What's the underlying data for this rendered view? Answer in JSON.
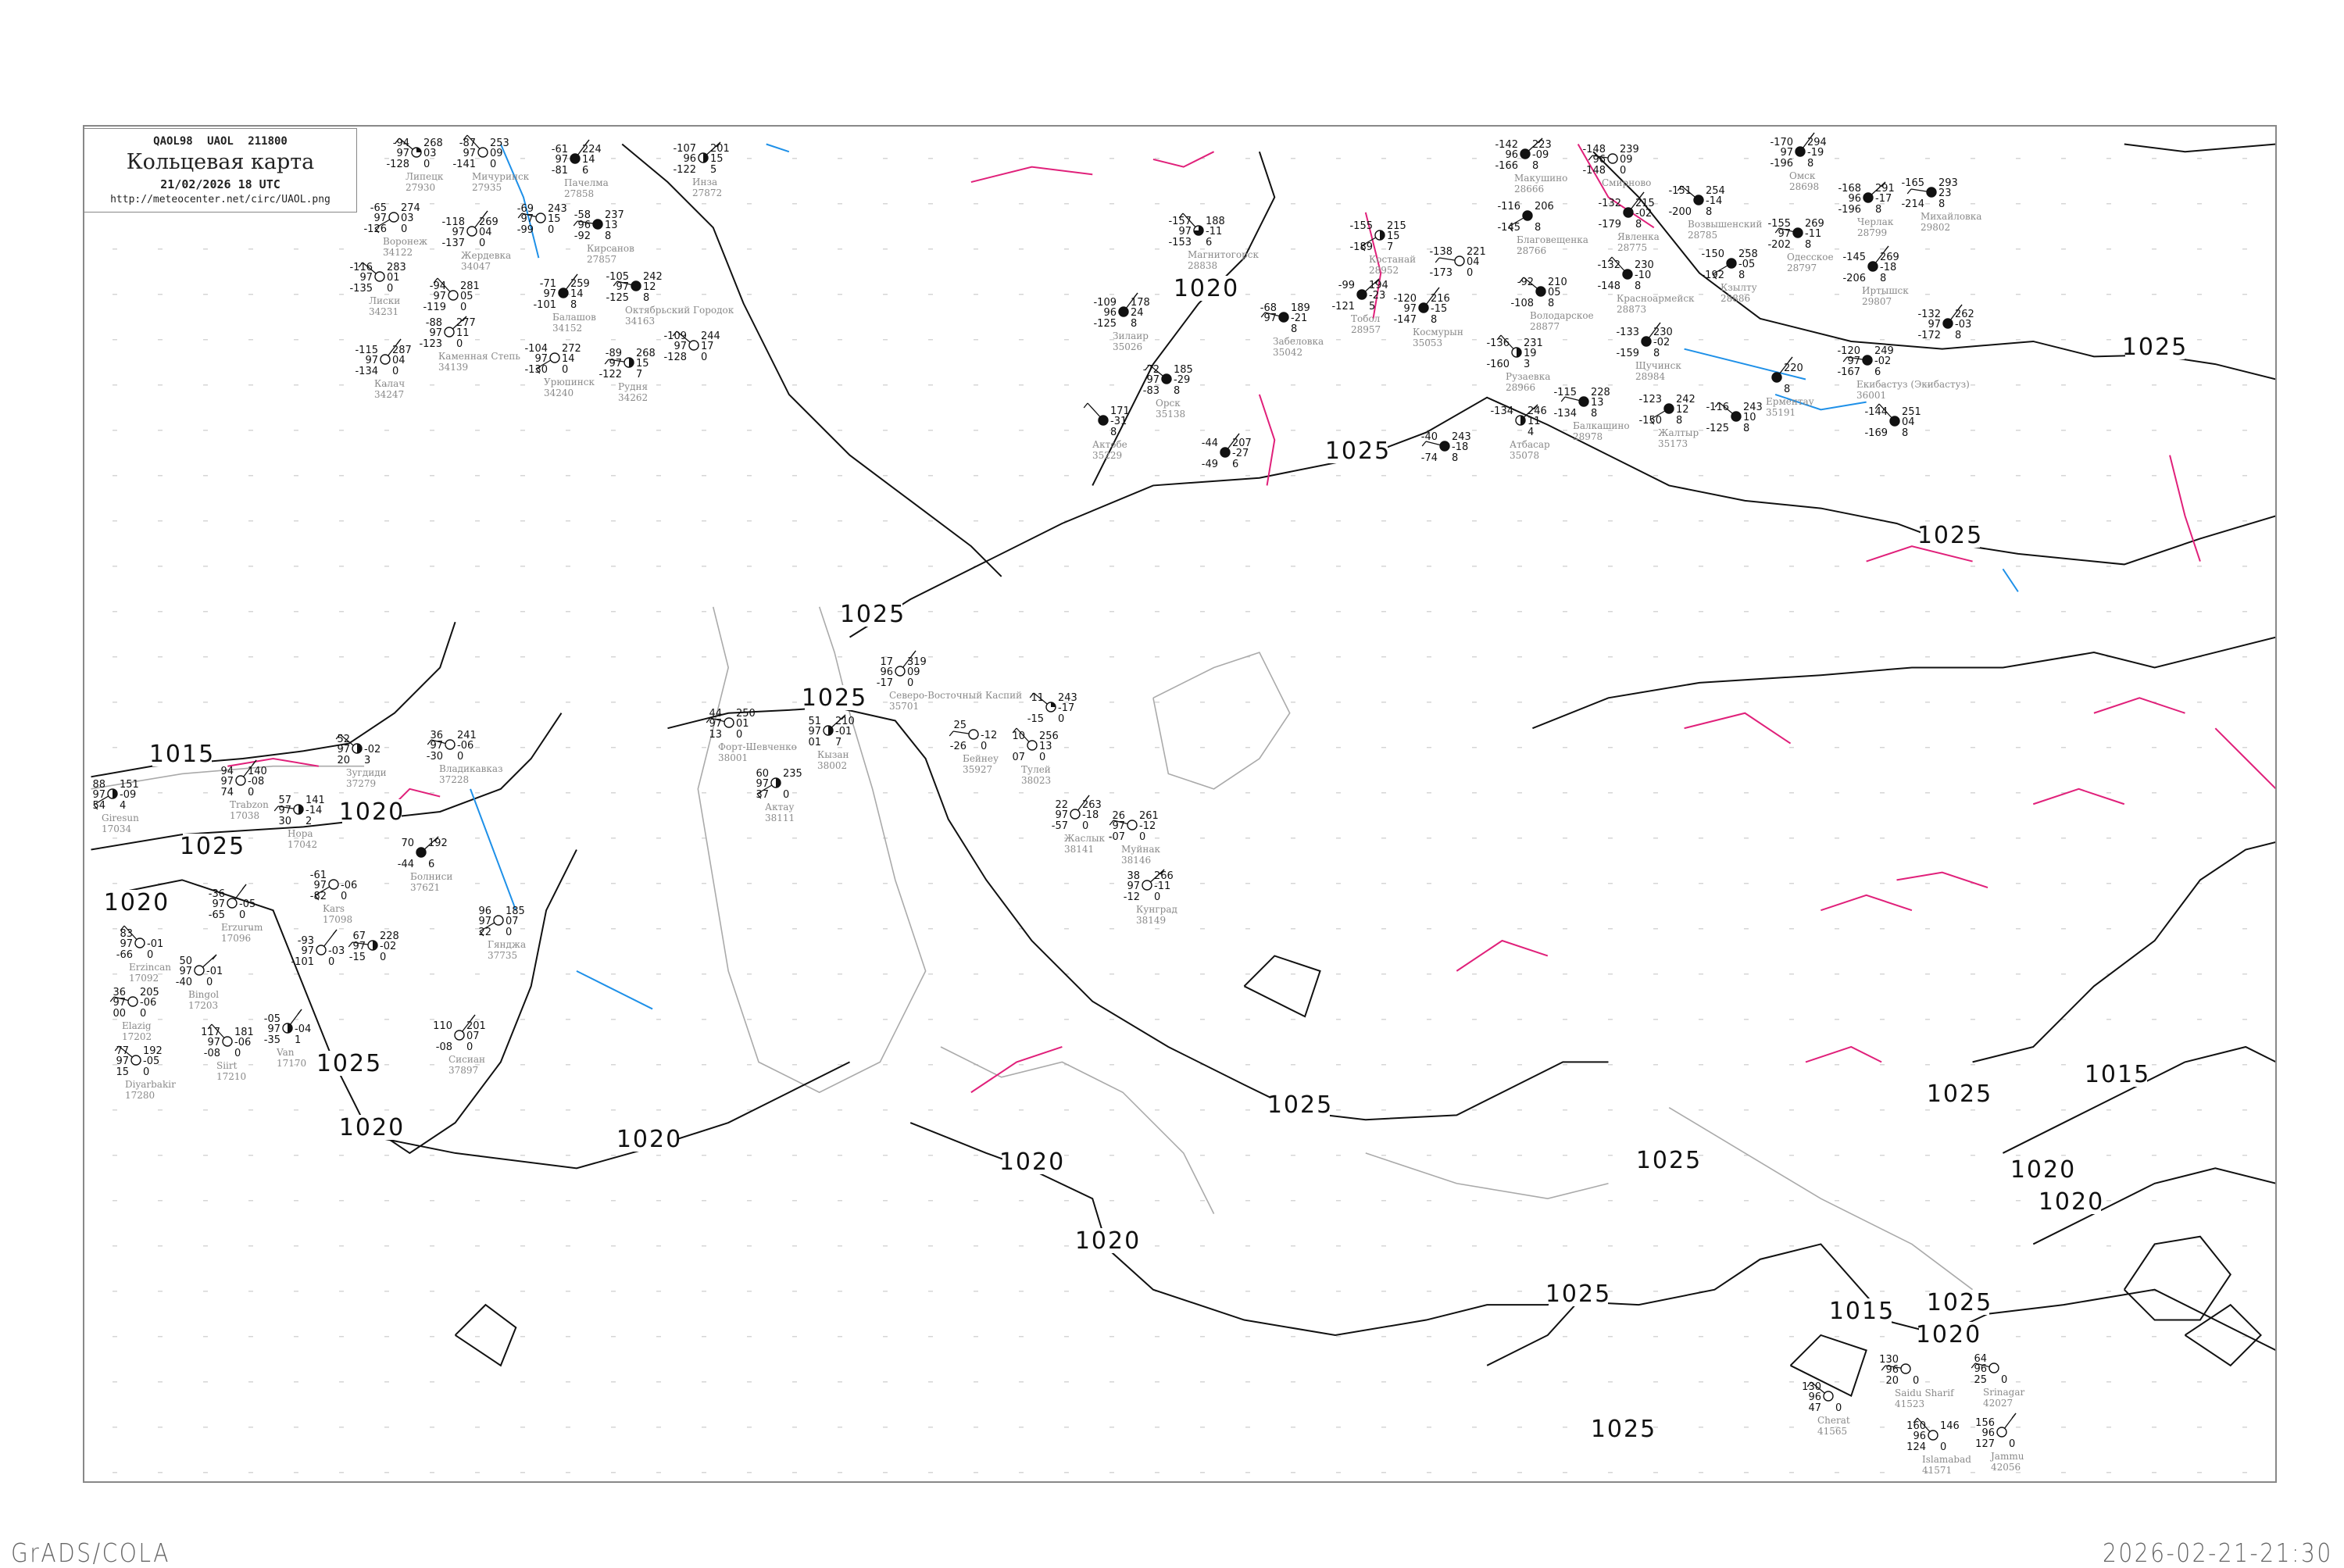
{
  "header": {
    "code_line": "QAOL98  UAOL  211800",
    "title": "Кольцевая карта",
    "date_line": "21/02/2026 18 UTC",
    "url": "http://meteocenter.net/circ/UAOL.png"
  },
  "footer": {
    "left": "GrADS/COLA",
    "right": "2026-02-21-21:30"
  },
  "colors": {
    "isobar": "#111111",
    "zero_isotherm": "#e0207a",
    "cold_isotherm": "#1e90e8",
    "coastline": "#aaaaaa",
    "station_name": "#8a8a8a"
  },
  "isobar_labels": [
    "1015",
    "1020",
    "1025",
    "1020",
    "1025",
    "1020",
    "1020",
    "1025",
    "1025",
    "1020",
    "1025",
    "1025",
    "1025",
    "1025",
    "1020",
    "1020",
    "1025",
    "1025",
    "1025",
    "1020",
    "1015",
    "1025",
    "1020",
    "1015",
    "1025",
    "1020"
  ],
  "stations": [
    {
      "name": "Липецк",
      "id": "27930",
      "t": "-94",
      "vis": "97",
      "td": "-128",
      "p": "268",
      "tend": "03",
      "w": "0",
      "cover": 0.25
    },
    {
      "name": "Мичуринск",
      "id": "27935",
      "t": "-87",
      "vis": "97",
      "td": "-141",
      "p": "253",
      "tend": "09",
      "w": "0",
      "cover": 0
    },
    {
      "name": "Пачелма",
      "id": "27858",
      "t": "-61",
      "vis": "97",
      "td": "-81",
      "p": "224",
      "tend": "14",
      "w": "6",
      "cover": 1
    },
    {
      "name": "",
      "id": "",
      "t": "-69",
      "vis": "97",
      "td": "-99",
      "p": "243",
      "tend": "15",
      "w": "0",
      "cover": 0
    },
    {
      "name": "Инза",
      "id": "27872",
      "t": "-107",
      "vis": "96",
      "td": "-122",
      "p": "201",
      "tend": "15",
      "w": "5",
      "cover": 0.5
    },
    {
      "name": "Воронеж",
      "id": "34122",
      "t": "-65",
      "vis": "97",
      "td": "-126",
      "p": "274",
      "tend": "03",
      "w": "0",
      "cover": 0
    },
    {
      "name": "Жердевка",
      "id": "34047",
      "t": "-118",
      "vis": "97",
      "td": "-137",
      "p": "269",
      "tend": "04",
      "w": "0",
      "cover": 0
    },
    {
      "name": "Кирсанов",
      "id": "27857",
      "t": "-58",
      "vis": "96",
      "td": "-92",
      "p": "237",
      "tend": "13",
      "w": "8",
      "cover": 1
    },
    {
      "name": "Лиски",
      "id": "34231",
      "t": "-116",
      "vis": "97",
      "td": "-135",
      "p": "283",
      "tend": "01",
      "w": "0",
      "cover": 0
    },
    {
      "name": "",
      "id": "",
      "t": "-94",
      "vis": "97",
      "td": "-119",
      "p": "281",
      "tend": "05",
      "w": "0",
      "cover": 0
    },
    {
      "name": "Балашов",
      "id": "34152",
      "t": "-71",
      "vis": "97",
      "td": "-101",
      "p": "259",
      "tend": "14",
      "w": "8",
      "cover": 1
    },
    {
      "name": "Октябрьский Городок",
      "id": "34163",
      "t": "-105",
      "vis": "97",
      "td": "-125",
      "p": "242",
      "tend": "12",
      "w": "8",
      "cover": 1
    },
    {
      "name": "Каменная Степь",
      "id": "34139",
      "t": "-88",
      "vis": "97",
      "td": "-123",
      "p": "277",
      "tend": "11",
      "w": "0",
      "cover": 0
    },
    {
      "name": "Урюпинск",
      "id": "34240",
      "t": "-104",
      "vis": "97",
      "td": "-130",
      "p": "272",
      "tend": "14",
      "w": "0",
      "cover": 0
    },
    {
      "name": "Калач",
      "id": "34247",
      "t": "-115",
      "vis": "97",
      "td": "-134",
      "p": "287",
      "tend": "04",
      "w": "0",
      "cover": 0
    },
    {
      "name": "Рудня",
      "id": "34262",
      "t": "-89",
      "vis": "97",
      "td": "-122",
      "p": "268",
      "tend": "15",
      "w": "7",
      "cover": 0.5
    },
    {
      "name": "",
      "id": "",
      "t": "-109",
      "vis": "97",
      "td": "-128",
      "p": "244",
      "tend": "17",
      "w": "0",
      "cover": 0
    },
    {
      "name": "Магнитогорск",
      "id": "28838",
      "t": "-157",
      "vis": "97",
      "td": "-153",
      "p": "188",
      "tend": "-11",
      "w": "6",
      "cover": 0.75
    },
    {
      "name": "Зилаир",
      "id": "35026",
      "t": "-109",
      "vis": "96",
      "td": "-125",
      "p": "178",
      "tend": "24",
      "w": "8",
      "cover": 1
    },
    {
      "name": "Забеловка",
      "id": "35042",
      "t": "-68",
      "vis": "97",
      "td": "",
      "p": "189",
      "tend": "-21",
      "w": "8",
      "cover": 1
    },
    {
      "name": "Тобол",
      "id": "28957",
      "t": "-99",
      "vis": "",
      "td": "-121",
      "p": "194",
      "tend": "-23",
      "w": "5",
      "cover": 1
    },
    {
      "name": "Костанай",
      "id": "28952",
      "t": "-155",
      "vis": "",
      "td": "-189",
      "p": "215",
      "tend": "15",
      "w": "7",
      "cover": 0.5
    },
    {
      "name": "Космурын",
      "id": "35053",
      "t": "-120",
      "vis": "97",
      "td": "-147",
      "p": "216",
      "tend": "-15",
      "w": "8",
      "cover": 1
    },
    {
      "name": "",
      "id": "",
      "t": "-138",
      "vis": "",
      "td": "-173",
      "p": "221",
      "tend": "04",
      "w": "0",
      "cover": 0
    },
    {
      "name": "Орск",
      "id": "35138",
      "t": "-72",
      "vis": "97",
      "td": "-83",
      "p": "185",
      "tend": "-29",
      "w": "8",
      "cover": 1
    },
    {
      "name": "Актобе",
      "id": "35229",
      "t": "",
      "vis": "",
      "td": "",
      "p": "171",
      "tend": "-31",
      "w": "8",
      "cover": 1
    },
    {
      "name": "",
      "id": "",
      "t": "-44",
      "vis": "",
      "td": "-49",
      "p": "207",
      "tend": "-27",
      "w": "6",
      "cover": 1
    },
    {
      "name": "",
      "id": "",
      "t": "-40",
      "vis": "",
      "td": "-74",
      "p": "243",
      "tend": "-18",
      "w": "8",
      "cover": 1
    },
    {
      "name": "Макушино",
      "id": "28666",
      "t": "-142",
      "vis": "96",
      "td": "-166",
      "p": "223",
      "tend": "-09",
      "w": "8",
      "cover": 1
    },
    {
      "name": "Благовещенка",
      "id": "28766",
      "t": "-116",
      "vis": "",
      "td": "-145",
      "p": "206",
      "tend": "",
      "w": "8",
      "cover": 1
    },
    {
      "name": "Явленка",
      "id": "28775",
      "t": "-132",
      "vis": "",
      "td": "-179",
      "p": "215",
      "tend": "-02",
      "w": "8",
      "cover": 1
    },
    {
      "name": "Смирново",
      "id": "",
      "t": "-148",
      "vis": "96",
      "td": "-148",
      "p": "239",
      "tend": "09",
      "w": "0",
      "cover": 0
    },
    {
      "name": "Возвышенский",
      "id": "28785",
      "t": "-151",
      "vis": "",
      "td": "-200",
      "p": "254",
      "tend": "-14",
      "w": "8",
      "cover": 1
    },
    {
      "name": "Красноармейск",
      "id": "28873",
      "t": "-132",
      "vis": "",
      "td": "-148",
      "p": "230",
      "tend": "-10",
      "w": "8",
      "cover": 1
    },
    {
      "name": "Омск",
      "id": "28698",
      "t": "-170",
      "vis": "97",
      "td": "-196",
      "p": "294",
      "tend": "-19",
      "w": "8",
      "cover": 1
    },
    {
      "name": "Одесское",
      "id": "28797",
      "t": "-155",
      "vis": "97",
      "td": "-202",
      "p": "269",
      "tend": "-11",
      "w": "8",
      "cover": 1
    },
    {
      "name": "Черлак",
      "id": "28799",
      "t": "-168",
      "vis": "96",
      "td": "-196",
      "p": "291",
      "tend": "-17",
      "w": "8",
      "cover": 1
    },
    {
      "name": "Кзылту",
      "id": "28886",
      "t": "-150",
      "vis": "",
      "td": "-192",
      "p": "258",
      "tend": "-05",
      "w": "8",
      "cover": 1
    },
    {
      "name": "Иртышск",
      "id": "29807",
      "t": "-145",
      "vis": "",
      "td": "-206",
      "p": "269",
      "tend": "-18",
      "w": "8",
      "cover": 1
    },
    {
      "name": "Михайловка",
      "id": "29802",
      "t": "-165",
      "vis": "",
      "td": "-214",
      "p": "293",
      "tend": "23",
      "w": "8",
      "cover": 1
    },
    {
      "name": "Володарское",
      "id": "28877",
      "t": "-92",
      "vis": "",
      "td": "-108",
      "p": "210",
      "tend": "05",
      "w": "8",
      "cover": 1
    },
    {
      "name": "Рузаевка",
      "id": "28966",
      "t": "-136",
      "vis": "",
      "td": "-160",
      "p": "231",
      "tend": "19",
      "w": "3",
      "cover": 0.5
    },
    {
      "name": "Щучинск",
      "id": "28984",
      "t": "-133",
      "vis": "",
      "td": "-159",
      "p": "230",
      "tend": "-02",
      "w": "8",
      "cover": 1
    },
    {
      "name": "Балкашино",
      "id": "28978",
      "t": "-115",
      "vis": "",
      "td": "-134",
      "p": "228",
      "tend": "13",
      "w": "8",
      "cover": 1
    },
    {
      "name": "Атбасар",
      "id": "35078",
      "t": "-134",
      "vis": "",
      "td": "",
      "p": "246",
      "tend": "11",
      "w": "4",
      "cover": 0.5
    },
    {
      "name": "Жалтыр",
      "id": "35173",
      "t": "-123",
      "vis": "",
      "td": "-150",
      "p": "242",
      "tend": "12",
      "w": "8",
      "cover": 1
    },
    {
      "name": "Ерментау",
      "id": "35191",
      "t": "",
      "vis": "",
      "td": "",
      "p": "220",
      "tend": "",
      "w": "8",
      "cover": 1
    },
    {
      "name": "Екибастуз (Экибастуз)",
      "id": "36001",
      "t": "-120",
      "vis": "97",
      "td": "-167",
      "p": "249",
      "tend": "-02",
      "w": "6",
      "cover": 1
    },
    {
      "name": "",
      "id": "",
      "t": "-116",
      "vis": "",
      "td": "-125",
      "p": "243",
      "tend": "10",
      "w": "8",
      "cover": 1
    },
    {
      "name": "",
      "id": "",
      "t": "-144",
      "vis": "",
      "td": "-169",
      "p": "251",
      "tend": "04",
      "w": "8",
      "cover": 1
    },
    {
      "name": "",
      "id": "",
      "t": "-132",
      "vis": "97",
      "td": "-172",
      "p": "262",
      "tend": "-03",
      "w": "8",
      "cover": 1
    },
    {
      "name": "Форт-Шевченко",
      "id": "38001",
      "t": "44",
      "vis": "97",
      "td": "13",
      "p": "250",
      "tend": "01",
      "w": "0",
      "cover": 0
    },
    {
      "name": "Кызан",
      "id": "38002",
      "t": "51",
      "vis": "97",
      "td": "01",
      "p": "210",
      "tend": "-01",
      "w": "7",
      "cover": 0.5
    },
    {
      "name": "Актау",
      "id": "38111",
      "t": "60",
      "vis": "97",
      "td": "37",
      "p": "235",
      "tend": "",
      "w": "0",
      "cover": 0.5
    },
    {
      "name": "Северо-Восточный Каспий",
      "id": "35701",
      "t": "17",
      "vis": "96",
      "td": "-17",
      "p": "319",
      "tend": "09",
      "w": "0",
      "cover": 0
    },
    {
      "name": "Бейнеу",
      "id": "35927",
      "t": "25",
      "vis": "",
      "td": "-26",
      "p": "",
      "tend": "-12",
      "w": "0",
      "cover": 0
    },
    {
      "name": "",
      "id": "",
      "t": "11",
      "vis": "",
      "td": "-15",
      "p": "243",
      "tend": "-17",
      "w": "0",
      "cover": 0.25
    },
    {
      "name": "Тулей",
      "id": "38023",
      "t": "10",
      "vis": "",
      "td": "07",
      "p": "256",
      "tend": "13",
      "w": "0",
      "cover": 0
    },
    {
      "name": "Жаслык",
      "id": "38141",
      "t": "22",
      "vis": "97",
      "td": "-57",
      "p": "263",
      "tend": "-18",
      "w": "0",
      "cover": 0
    },
    {
      "name": "Муйнак",
      "id": "38146",
      "t": "26",
      "vis": "97",
      "td": "-07",
      "p": "261",
      "tend": "-12",
      "w": "0",
      "cover": 0
    },
    {
      "name": "Кунград",
      "id": "38149",
      "t": "38",
      "vis": "97",
      "td": "-12",
      "p": "266",
      "tend": "-11",
      "w": "0",
      "cover": 0
    },
    {
      "name": "Giresun",
      "id": "17034",
      "t": "88",
      "vis": "97",
      "td": "54",
      "p": "151",
      "tend": "-09",
      "w": "4",
      "cover": 0.5
    },
    {
      "name": "Trabzon",
      "id": "17038",
      "t": "94",
      "vis": "97",
      "td": "74",
      "p": "140",
      "tend": "-08",
      "w": "0",
      "cover": 0
    },
    {
      "name": "Hopa",
      "id": "17042",
      "t": "57",
      "vis": "97",
      "td": "30",
      "p": "141",
      "tend": "-14",
      "w": "2",
      "cover": 0.5
    },
    {
      "name": "Зугдиди",
      "id": "37279",
      "t": "52",
      "vis": "97",
      "td": "20",
      "p": "",
      "tend": "-02",
      "w": "3",
      "cover": 0.5
    },
    {
      "name": "Erzincan",
      "id": "17092",
      "t": "83",
      "vis": "97",
      "td": "-66",
      "p": "",
      "tend": "-01",
      "w": "0",
      "cover": 0
    },
    {
      "name": "Erzurum",
      "id": "17096",
      "t": "-36",
      "vis": "97",
      "td": "-65",
      "p": "",
      "tend": "-05",
      "w": "0",
      "cover": 0
    },
    {
      "name": "Elazig",
      "id": "17202",
      "t": "36",
      "vis": "97",
      "td": "00",
      "p": "205",
      "tend": "-06",
      "w": "0",
      "cover": 0
    },
    {
      "name": "Bingol",
      "id": "17203",
      "t": "50",
      "vis": "97",
      "td": "-40",
      "p": "",
      "tend": "-01",
      "w": "0",
      "cover": 0
    },
    {
      "name": "Kars",
      "id": "17098",
      "t": "-61",
      "vis": "97",
      "td": "-82",
      "p": "",
      "tend": "-06",
      "w": "0",
      "cover": 0
    },
    {
      "name": "",
      "id": "",
      "t": "-93",
      "vis": "97",
      "td": "-101",
      "p": "",
      "tend": "-03",
      "w": "0",
      "cover": 0
    },
    {
      "name": "",
      "id": "",
      "t": "67",
      "vis": "97",
      "td": "-15",
      "p": "228",
      "tend": "-02",
      "w": "0",
      "cover": 0.5
    },
    {
      "name": "Diyarbakir",
      "id": "17280",
      "t": "77",
      "vis": "97",
      "td": "15",
      "p": "192",
      "tend": "-05",
      "w": "0",
      "cover": 0
    },
    {
      "name": "Siirt",
      "id": "17210",
      "t": "117",
      "vis": "97",
      "td": "-08",
      "p": "181",
      "tend": "-06",
      "w": "0",
      "cover": 0
    },
    {
      "name": "Van",
      "id": "17170",
      "t": "-05",
      "vis": "97",
      "td": "-35",
      "p": "",
      "tend": "-04",
      "w": "1",
      "cover": 0.5
    },
    {
      "name": "Владикавказ",
      "id": "37228",
      "t": "36",
      "vis": "97",
      "td": "-30",
      "p": "241",
      "tend": "-06",
      "w": "0",
      "cover": 0
    },
    {
      "name": "Болниси",
      "id": "37621",
      "t": "70",
      "vis": "",
      "td": "-44",
      "p": "192",
      "tend": "",
      "w": "6",
      "cover": 1
    },
    {
      "name": "Гянджа",
      "id": "37735",
      "t": "96",
      "vis": "97",
      "td": "22",
      "p": "185",
      "tend": "07",
      "w": "0",
      "cover": 0
    },
    {
      "name": "Сисиан",
      "id": "37897",
      "t": "110",
      "vis": "",
      "td": "-08",
      "p": "201",
      "tend": "07",
      "w": "0",
      "cover": 0
    },
    {
      "name": "Saidu Sharif",
      "id": "41523",
      "t": "130",
      "vis": "96",
      "td": "20",
      "p": "",
      "tend": "",
      "w": "0",
      "cover": 0
    },
    {
      "name": "Cherat",
      "id": "41565",
      "t": "130",
      "vis": "96",
      "td": "47",
      "p": "",
      "tend": "",
      "w": "0",
      "cover": 0
    },
    {
      "name": "Islamabad",
      "id": "41571",
      "t": "160",
      "vis": "96",
      "td": "124",
      "p": "146",
      "tend": "",
      "w": "0",
      "cover": 0
    },
    {
      "name": "Jammu",
      "id": "42056",
      "t": "156",
      "vis": "96",
      "td": "127",
      "p": "",
      "tend": "",
      "w": "0",
      "cover": 0
    },
    {
      "name": "Srinagar",
      "id": "42027",
      "t": "64",
      "vis": "96",
      "td": "25",
      "p": "",
      "tend": "",
      "w": "0",
      "cover": 0
    }
  ]
}
